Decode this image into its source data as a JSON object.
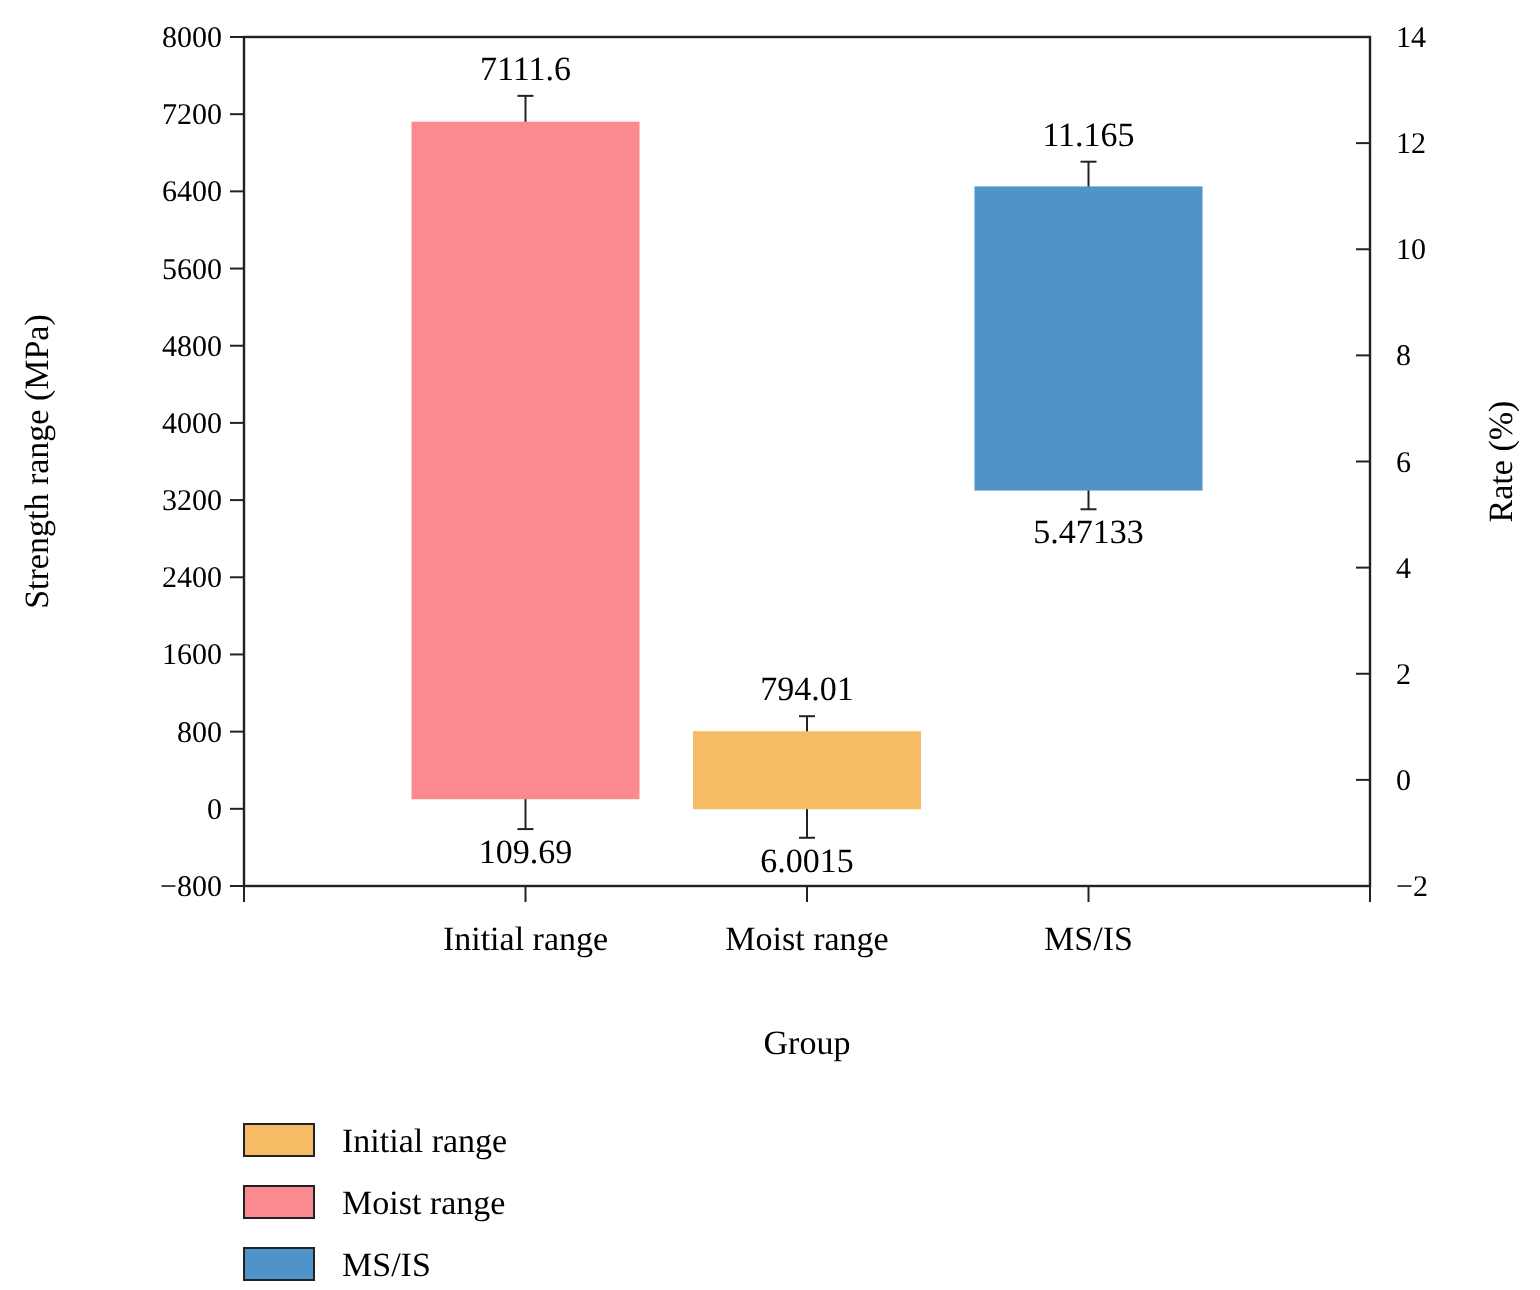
{
  "chart_data": {
    "type": "bar",
    "xlabel": "Group",
    "ylabel": "Strength range (MPa)",
    "y2label": "Rate (%)",
    "categories": [
      "Initial range",
      "Moist range",
      "MS/IS"
    ],
    "series": [
      {
        "name": "Initial range",
        "color": "#f6bc65",
        "values": [
          null,
          788,
          null
        ],
        "base": [
          null,
          6.0015,
          null
        ],
        "errors": [
          null,
          [
            -300,
            960
          ],
          null
        ]
      },
      {
        "name": "Moist range",
        "color": "#fa8a8f",
        "values": [
          7002,
          null,
          null
        ],
        "base": [
          109.69,
          null,
          null
        ],
        "errors": [
          [
            -210,
            7390
          ],
          null,
          null
        ]
      },
      {
        "name": "MS/IS",
        "color": "#4f94c8",
        "axis": "y2",
        "values": [
          null,
          null,
          5.694
        ],
        "base": [
          null,
          null,
          5.47133
        ],
        "errors": [
          null,
          null,
          [
            5.1,
            11.65
          ]
        ]
      }
    ],
    "ylim": [
      -800,
      8000
    ],
    "yticks": [
      {
        "value": -800,
        "label": "−800"
      },
      0,
      800,
      1600,
      2400,
      3200,
      4000,
      4800,
      5600,
      6400,
      7200,
      8000
    ],
    "y2lim": [
      -2,
      14
    ],
    "y2ticks": [
      {
        "value": -2,
        "label": "−2"
      },
      0,
      2,
      4,
      6,
      8,
      10,
      12,
      14
    ],
    "annotations": [
      {
        "text": "7111.6",
        "x": "Initial range",
        "y": 7111.6
      },
      {
        "text": "109.69",
        "x": "Initial range",
        "y": 109.69
      },
      {
        "text": "794.01",
        "x": "Moist range",
        "y": 794.01
      },
      {
        "text": "6.0015",
        "x": "Moist range",
        "y": 6.0015
      },
      "11.165",
      "5.47133"
    ],
    "legend": "bottom left",
    "grid": false
  }
}
